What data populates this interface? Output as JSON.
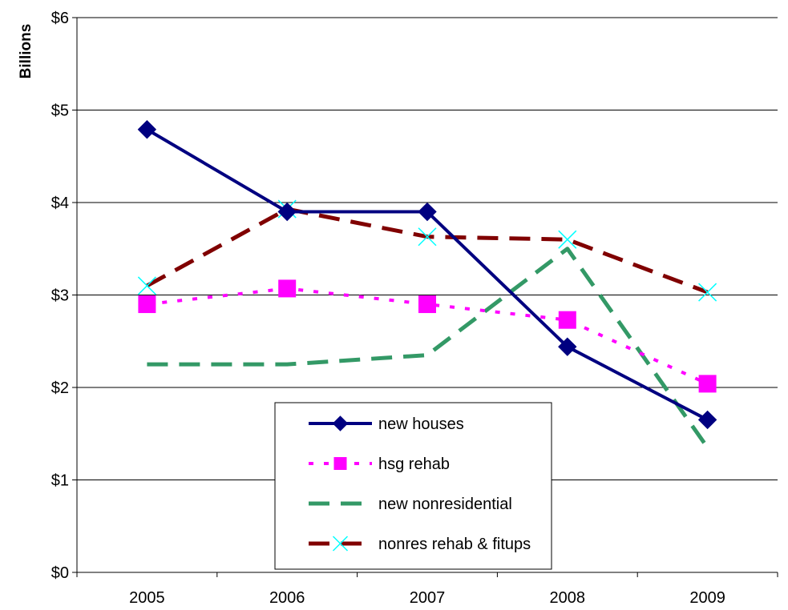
{
  "chart_data": {
    "type": "line",
    "title": "",
    "xlabel": "",
    "ylabel": "Billions",
    "categories": [
      "2005",
      "2006",
      "2007",
      "2008",
      "2009"
    ],
    "ylim": [
      0,
      6
    ],
    "y_ticks": [
      0,
      1,
      2,
      3,
      4,
      5,
      6
    ],
    "y_tick_labels": [
      "$0",
      "$1",
      "$2",
      "$3",
      "$4",
      "$5",
      "$6"
    ],
    "grid": true,
    "legend_position": "bottom-center",
    "series": [
      {
        "name": "new houses",
        "values": [
          4.79,
          3.9,
          3.9,
          2.44,
          1.65
        ],
        "color": "#000080",
        "style": "solid",
        "marker": "diamond"
      },
      {
        "name": "hsg rehab",
        "values": [
          2.9,
          3.07,
          2.9,
          2.73,
          2.04
        ],
        "color": "#FF00FF",
        "style": "dotted",
        "marker": "square"
      },
      {
        "name": "new nonresidential",
        "values": [
          2.25,
          2.25,
          2.35,
          3.5,
          1.35
        ],
        "color": "#339966",
        "style": "dashed",
        "marker": "none"
      },
      {
        "name": "nonres rehab & fitups",
        "values": [
          3.1,
          3.93,
          3.63,
          3.6,
          3.03
        ],
        "color": "#800000",
        "style": "dashed",
        "marker": "x",
        "marker_color": "#00FFFF"
      }
    ]
  }
}
